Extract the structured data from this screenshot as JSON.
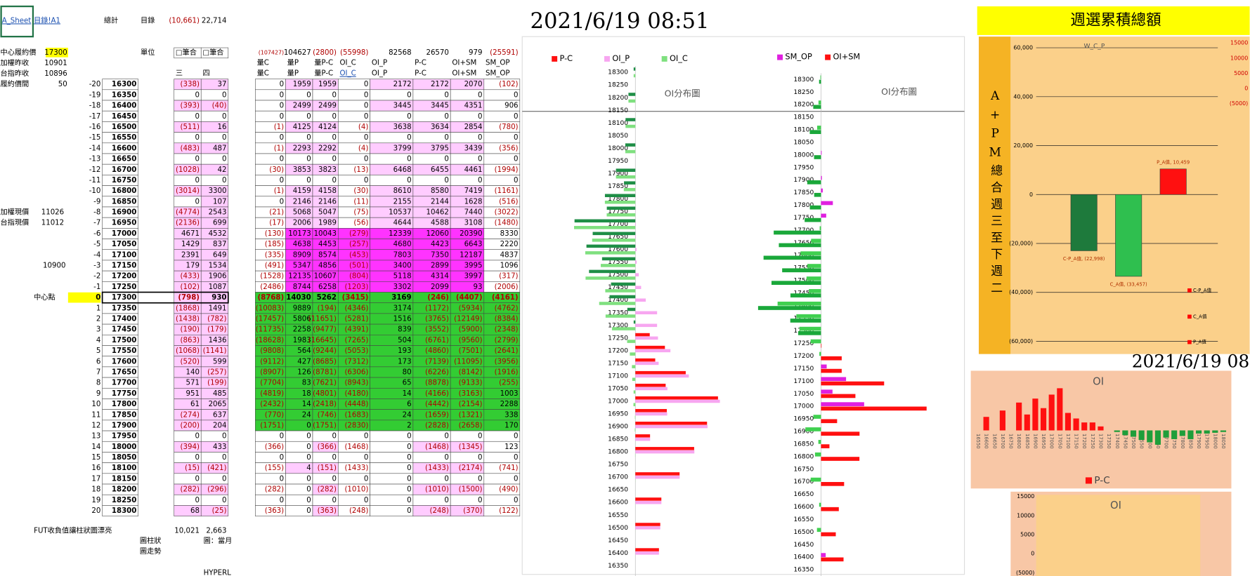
{
  "sheet": {
    "top": [
      "A_Sheet",
      "目錄!A1",
      "總計",
      "目錄",
      "(10,661)",
      "22,714"
    ],
    "info": [
      [
        "中心履約價",
        "17300"
      ],
      [
        "加權昨收",
        "10901"
      ],
      [
        "台指昨收",
        "10896"
      ],
      [
        "履約價間",
        "50"
      ]
    ],
    "unit": "單位",
    "sel": [
      "□筆合",
      "□筆合"
    ],
    "days": [
      "三",
      "四"
    ],
    "totals": [
      "(107427)",
      "104627",
      "(2800)",
      "(55998)",
      "82568",
      "26570",
      "979",
      "(25591)"
    ],
    "heads": [
      [
        "量C",
        "量P",
        "量P-C",
        "OI_C",
        "OI_P",
        "P-C",
        "OI+SM",
        "SM_OP"
      ],
      [
        "量C",
        "量P",
        "量P-C",
        "OI_C",
        "OI_P",
        "P-C",
        "OI+SM",
        "SM_OP"
      ]
    ],
    "spot": [
      [
        "加權現價",
        "11026"
      ],
      [
        "台指現價",
        "11012"
      ]
    ],
    "mark_value": "10900",
    "center_label": "中心點",
    "rows": [
      [
        "-20",
        "16300",
        "(338)",
        "37",
        "0",
        "1959",
        "1959",
        "0",
        "2172",
        "2172",
        "2070",
        "(102)"
      ],
      [
        "-19",
        "16350",
        "0",
        "0",
        "0",
        "0",
        "0",
        "0",
        "0",
        "0",
        "0",
        "0"
      ],
      [
        "-18",
        "16400",
        "(393)",
        "(40)",
        "0",
        "2499",
        "2499",
        "0",
        "3445",
        "3445",
        "4351",
        "906"
      ],
      [
        "-17",
        "16450",
        "0",
        "0",
        "0",
        "0",
        "0",
        "0",
        "0",
        "0",
        "0",
        "0"
      ],
      [
        "-16",
        "16500",
        "(511)",
        "16",
        "(1)",
        "4125",
        "4124",
        "(4)",
        "3638",
        "3634",
        "2854",
        "(780)"
      ],
      [
        "-15",
        "16550",
        "0",
        "0",
        "0",
        "0",
        "0",
        "0",
        "0",
        "0",
        "0",
        "0"
      ],
      [
        "-14",
        "16600",
        "(483)",
        "487",
        "(1)",
        "2293",
        "2292",
        "(4)",
        "3799",
        "3795",
        "3439",
        "(356)"
      ],
      [
        "-13",
        "16650",
        "0",
        "0",
        "0",
        "0",
        "0",
        "0",
        "0",
        "0",
        "0",
        "0"
      ],
      [
        "-12",
        "16700",
        "(1028)",
        "42",
        "(30)",
        "3853",
        "3823",
        "(13)",
        "6468",
        "6455",
        "4461",
        "(1994)"
      ],
      [
        "-11",
        "16750",
        "0",
        "0",
        "0",
        "0",
        "0",
        "0",
        "0",
        "0",
        "0",
        "0"
      ],
      [
        "-10",
        "16800",
        "(3014)",
        "3300",
        "(1)",
        "4159",
        "4158",
        "(30)",
        "8610",
        "8580",
        "7419",
        "(1161)"
      ],
      [
        "-9",
        "16850",
        "0",
        "107",
        "0",
        "2146",
        "2146",
        "(11)",
        "2155",
        "2144",
        "1628",
        "(516)"
      ],
      [
        "-8",
        "16900",
        "(4774)",
        "2543",
        "(21)",
        "5068",
        "5047",
        "(75)",
        "10537",
        "10462",
        "7440",
        "(3022)"
      ],
      [
        "-7",
        "16950",
        "(2136)",
        "699",
        "(17)",
        "2006",
        "1989",
        "(56)",
        "4644",
        "4588",
        "3108",
        "(1480)"
      ],
      [
        "-6",
        "17000",
        "4671",
        "4532",
        "(130)",
        "10173",
        "10043",
        "(279)",
        "12339",
        "12060",
        "20390",
        "8330"
      ],
      [
        "-5",
        "17050",
        "1429",
        "837",
        "(185)",
        "4638",
        "4453",
        "(257)",
        "4680",
        "4423",
        "6643",
        "2220"
      ],
      [
        "-4",
        "17100",
        "2391",
        "649",
        "(335)",
        "8909",
        "8574",
        "(453)",
        "7803",
        "7350",
        "12187",
        "4837"
      ],
      [
        "-3",
        "17150",
        "179",
        "1534",
        "(491)",
        "5347",
        "4856",
        "(501)",
        "3400",
        "2899",
        "3995",
        "1096"
      ],
      [
        "-2",
        "17200",
        "(433)",
        "1906",
        "(1528)",
        "12135",
        "10607",
        "(804)",
        "5118",
        "4314",
        "3997",
        "(317)"
      ],
      [
        "-1",
        "17250",
        "(102)",
        "1087",
        "(2486)",
        "8744",
        "6258",
        "(1203)",
        "3302",
        "2099",
        "93",
        "(2006)"
      ],
      [
        "0",
        "17300",
        "(798)",
        "930",
        "(8768)",
        "14030",
        "5262",
        "(3415)",
        "3169",
        "(246)",
        "(4407)",
        "(4161)"
      ],
      [
        "1",
        "17350",
        "(1868)",
        "1491",
        "(10083)",
        "9889",
        "(194)",
        "(4346)",
        "3174",
        "(1172)",
        "(5934)",
        "(4762)"
      ],
      [
        "2",
        "17400",
        "(1438)",
        "(782)",
        "(17457)",
        "5806",
        "(11651)",
        "(5281)",
        "1516",
        "(3765)",
        "(12149)",
        "(8384)"
      ],
      [
        "3",
        "17450",
        "(190)",
        "(179)",
        "(11735)",
        "2258",
        "(9477)",
        "(4391)",
        "839",
        "(3552)",
        "(5900)",
        "(2348)"
      ],
      [
        "4",
        "17500",
        "(863)",
        "1436",
        "(18628)",
        "1983",
        "(16645)",
        "(7265)",
        "504",
        "(6761)",
        "(9560)",
        "(2799)"
      ],
      [
        "5",
        "17550",
        "(1068)",
        "(1141)",
        "(9808)",
        "564",
        "(9244)",
        "(5053)",
        "193",
        "(4860)",
        "(7501)",
        "(2641)"
      ],
      [
        "6",
        "17600",
        "(520)",
        "599",
        "(9112)",
        "427",
        "(8685)",
        "(7312)",
        "173",
        "(7139)",
        "(11095)",
        "(3956)"
      ],
      [
        "7",
        "17650",
        "140",
        "(257)",
        "(8907)",
        "126",
        "(8781)",
        "(6306)",
        "80",
        "(6226)",
        "(8142)",
        "(1916)"
      ],
      [
        "8",
        "17700",
        "571",
        "(199)",
        "(7704)",
        "83",
        "(7621)",
        "(8943)",
        "65",
        "(8878)",
        "(9133)",
        "(255)"
      ],
      [
        "9",
        "17750",
        "951",
        "485",
        "(4819)",
        "18",
        "(4801)",
        "(4180)",
        "14",
        "(4166)",
        "(3163)",
        "1003"
      ],
      [
        "10",
        "17800",
        "61",
        "2065",
        "(2432)",
        "14",
        "(2418)",
        "(4448)",
        "6",
        "(4442)",
        "(2154)",
        "2288"
      ],
      [
        "11",
        "17850",
        "(274)",
        "637",
        "(770)",
        "24",
        "(746)",
        "(1683)",
        "24",
        "(1659)",
        "(1321)",
        "338"
      ],
      [
        "12",
        "17900",
        "(200)",
        "204",
        "(1751)",
        "0",
        "(1751)",
        "(2830)",
        "2",
        "(2828)",
        "(2658)",
        "170"
      ],
      [
        "13",
        "17950",
        "0",
        "0",
        "0",
        "0",
        "0",
        "0",
        "0",
        "0",
        "0",
        "0"
      ],
      [
        "14",
        "18000",
        "(394)",
        "433",
        "(366)",
        "0",
        "(366)",
        "(1468)",
        "0",
        "(1468)",
        "(1345)",
        "123"
      ],
      [
        "15",
        "18050",
        "0",
        "0",
        "0",
        "0",
        "0",
        "0",
        "0",
        "0",
        "0",
        "0"
      ],
      [
        "16",
        "18100",
        "(15)",
        "(421)",
        "(155)",
        "4",
        "(151)",
        "(1433)",
        "0",
        "(1433)",
        "(2174)",
        "(741)"
      ],
      [
        "17",
        "18150",
        "0",
        "0",
        "0",
        "0",
        "0",
        "0",
        "0",
        "0",
        "0",
        "0"
      ],
      [
        "18",
        "18200",
        "(282)",
        "(296)",
        "(282)",
        "0",
        "(282)",
        "(1010)",
        "0",
        "(1010)",
        "(1500)",
        "(490)"
      ],
      [
        "19",
        "18250",
        "0",
        "0",
        "0",
        "0",
        "0",
        "0",
        "0",
        "0",
        "0",
        "0"
      ],
      [
        "20",
        "18300",
        "68",
        "(25)",
        "(363)",
        "0",
        "(363)",
        "(248)",
        "0",
        "(248)",
        "(370)",
        "(122)"
      ]
    ],
    "footer": [
      [
        "FUT收負值讓柱狀圖漂亮",
        "10,021",
        "2,663"
      ],
      [
        "圖柱狀",
        "圖：當月"
      ],
      [
        "圖走勢"
      ],
      [
        "HYPERL"
      ]
    ]
  },
  "timestamp": "2021/6/19 08:51",
  "banner": "週選累積總額",
  "side_label": "A+PM總合週三至下週二",
  "timestamp_partial": "2021/6/19 08",
  "chart_data": [
    {
      "type": "hbar",
      "title": "OI分布圖",
      "categories": [
        "18300",
        "18250",
        "18200",
        "18150",
        "18100",
        "18050",
        "18000",
        "17950",
        "17900",
        "17850",
        "17800",
        "17750",
        "17700",
        "17650",
        "17600",
        "17550",
        "17500",
        "17450",
        "17400",
        "17350",
        "17300",
        "17250",
        "17200",
        "17150",
        "17100",
        "17050",
        "17000",
        "16950",
        "16900",
        "16850",
        "16800",
        "16750",
        "16700",
        "16650",
        "16600",
        "16550",
        "16500",
        "16450",
        "16400",
        "16350"
      ],
      "series": [
        {
          "name": "P-C",
          "color": "#ff1010",
          "negative_color": "#1e8e46",
          "values": [
            -248,
            0,
            -1010,
            0,
            -1433,
            0,
            -1468,
            0,
            -2828,
            -1659,
            -4442,
            -4166,
            -8878,
            -6226,
            -7139,
            -4860,
            -6761,
            -3552,
            -3765,
            -1172,
            -246,
            2099,
            4314,
            2899,
            7350,
            4423,
            12060,
            4588,
            10462,
            2144,
            8580,
            0,
            6455,
            0,
            3795,
            0,
            3634,
            0,
            3445,
            0
          ]
        },
        {
          "name": "OI_P",
          "color": "#f7a6f0",
          "values": [
            0,
            0,
            0,
            0,
            0,
            0,
            0,
            0,
            2,
            24,
            6,
            14,
            65,
            80,
            173,
            193,
            504,
            839,
            1516,
            3174,
            3169,
            3302,
            5118,
            3400,
            7803,
            4680,
            12339,
            4644,
            10537,
            2155,
            8610,
            0,
            6468,
            0,
            3799,
            0,
            3638,
            0,
            3445,
            0
          ]
        },
        {
          "name": "OI_C",
          "color": "#7fe07f",
          "values": [
            -248,
            0,
            -1010,
            0,
            -1433,
            0,
            -1468,
            0,
            -2830,
            -1683,
            -4448,
            -4180,
            -8943,
            -6306,
            -7312,
            -5053,
            -7265,
            -4391,
            -5281,
            -4346,
            -3415,
            -1203,
            -804,
            -501,
            -453,
            -257,
            -279,
            -56,
            -75,
            -11,
            -30,
            0,
            -13,
            0,
            -4,
            0,
            -4,
            0,
            0,
            0
          ]
        }
      ],
      "xlim": [
        -10000,
        15000
      ]
    },
    {
      "type": "hbar",
      "title": "OI分布圖",
      "categories": [
        "18300",
        "18250",
        "18200",
        "18150",
        "18100",
        "18050",
        "18000",
        "17950",
        "17900",
        "17850",
        "17800",
        "17750",
        "17700",
        "17650",
        "17600",
        "17550",
        "17500",
        "17450",
        "17400",
        "17350",
        "17300",
        "17250",
        "17200",
        "17150",
        "17100",
        "17050",
        "17000",
        "16950",
        "16900",
        "16850",
        "16800",
        "16750",
        "16700",
        "16650",
        "16600",
        "16550",
        "16500",
        "16450",
        "16400",
        "16350"
      ],
      "series": [
        {
          "name": "SM_OP",
          "color": "#e020e0",
          "negative_color": "#40d050",
          "values": [
            -122,
            0,
            -490,
            0,
            -741,
            0,
            123,
            0,
            170,
            338,
            2288,
            1003,
            -255,
            -1916,
            -3956,
            -2641,
            -2799,
            -2348,
            -8384,
            -4762,
            -4161,
            -2006,
            -317,
            1096,
            4837,
            2220,
            8330,
            -1480,
            -3022,
            -516,
            -1161,
            0,
            -1994,
            0,
            -356,
            0,
            -780,
            0,
            906,
            0
          ]
        },
        {
          "name": "OI+SM",
          "color": "#ff1010",
          "negative_color": "#1aa83a",
          "values": [
            -370,
            0,
            -1500,
            0,
            -2174,
            0,
            -1345,
            0,
            -2658,
            -1321,
            -2154,
            -3163,
            -9133,
            -8142,
            -11095,
            -7501,
            -9560,
            -5900,
            -12149,
            -5934,
            -4407,
            93,
            3997,
            3995,
            12187,
            6643,
            20390,
            3108,
            7440,
            1628,
            7419,
            0,
            4461,
            0,
            3439,
            0,
            2854,
            0,
            4351,
            0
          ]
        }
      ],
      "xlim": [
        -12000,
        22000
      ]
    },
    {
      "type": "bar",
      "title": "W_C_P",
      "values": [
        -22998,
        -33457,
        10459
      ],
      "value_labels": [
        "C-P_A值, (22,998)",
        "C_A值, (33,457)",
        "P_A值, 10,459"
      ],
      "colors": [
        "#1e7a3c",
        "#2fbf4f",
        "#ff1010"
      ],
      "legend": [
        "C-P_A值",
        "C_A值",
        "P_A值"
      ],
      "ylim": [
        -60000,
        60000
      ],
      "yticks": [
        {
          "value": 60000,
          "label": "60,000"
        },
        {
          "value": 40000,
          "label": "40,000"
        },
        {
          "value": 20000,
          "label": "20,000"
        },
        0,
        {
          "value": -20000,
          "label": "(20,000)"
        },
        {
          "value": -40000,
          "label": "(40,000)"
        },
        {
          "value": -60000,
          "label": "(60,000)"
        }
      ],
      "y2lim": [
        -5000,
        15000
      ],
      "y2ticks": [
        15000,
        10000,
        5000,
        0,
        {
          "value": -5000,
          "label": "(5000)"
        }
      ],
      "grid": true
    },
    {
      "type": "column",
      "title": "OI",
      "categories": [
        "16550",
        "16600",
        "16650",
        "16700",
        "16750",
        "16800",
        "16850",
        "16900",
        "16950",
        "17000",
        "17050",
        "17100",
        "17150",
        "17200",
        "17250",
        "17300",
        "17350",
        "17400",
        "17450",
        "17500",
        "17550",
        "17600",
        "17650",
        "17700",
        "17750",
        "17800",
        "17850",
        "17900",
        "17950",
        "18000",
        "18050"
      ],
      "series": [
        {
          "name": "P-C",
          "color": "#ff1010",
          "negative_color": "#1f9e3a",
          "values": [
            0,
            3400,
            0,
            5000,
            0,
            7000,
            4000,
            8000,
            5600,
            9000,
            10600,
            4400,
            3000,
            2000,
            2000,
            1000,
            0,
            -400,
            -1200,
            -1600,
            -2400,
            -3000,
            -3600,
            -1800,
            -2200,
            -1400,
            -2200,
            -800,
            -800,
            -600,
            -400
          ]
        }
      ],
      "ylim": [
        -6000,
        12000
      ]
    },
    {
      "type": "column",
      "title": "OI",
      "ylim": [
        -5000,
        15000
      ],
      "yticks": [
        15000,
        10000,
        5000,
        0,
        {
          "value": -5000,
          "label": "(5000)"
        }
      ]
    }
  ]
}
